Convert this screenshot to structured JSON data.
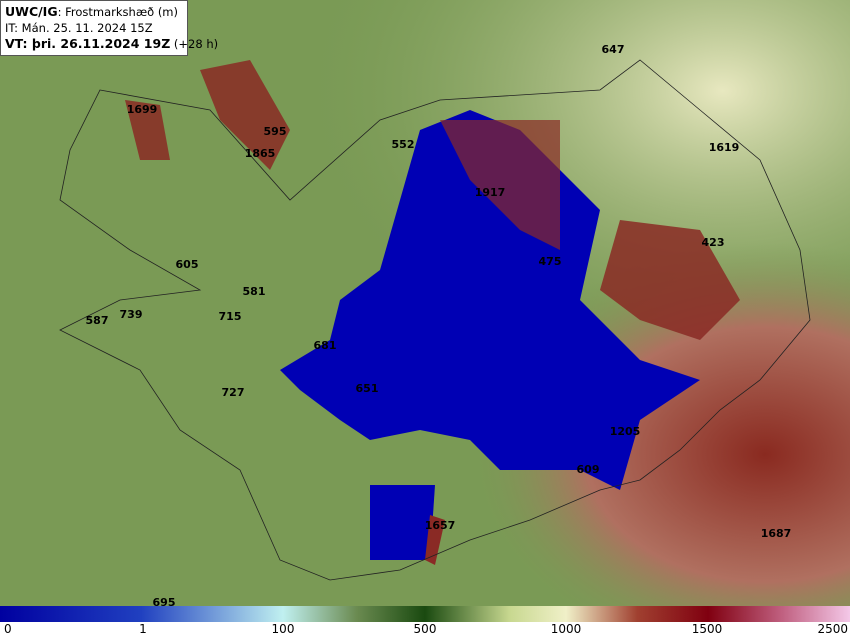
{
  "header": {
    "product": "UWC/IG",
    "parameter": ": Frostmarkshæð (m)",
    "issue_time": "IT: Mán. 25. 11. 2024 15Z",
    "valid_time": "VT: þri. 26.11.2024 19Z",
    "lead": "(+28 h)"
  },
  "labels": [
    "1699",
    "595",
    "1865",
    "552",
    "647",
    "1619",
    "1917",
    "423",
    "475",
    "605",
    "581",
    "715",
    "587",
    "739",
    "681",
    "651",
    "727",
    "1205",
    "609",
    "1657",
    "1687",
    "695"
  ],
  "colorbar": {
    "ticks": [
      "0",
      "1",
      "100",
      "500",
      "1000",
      "1500",
      "2500"
    ]
  }
}
